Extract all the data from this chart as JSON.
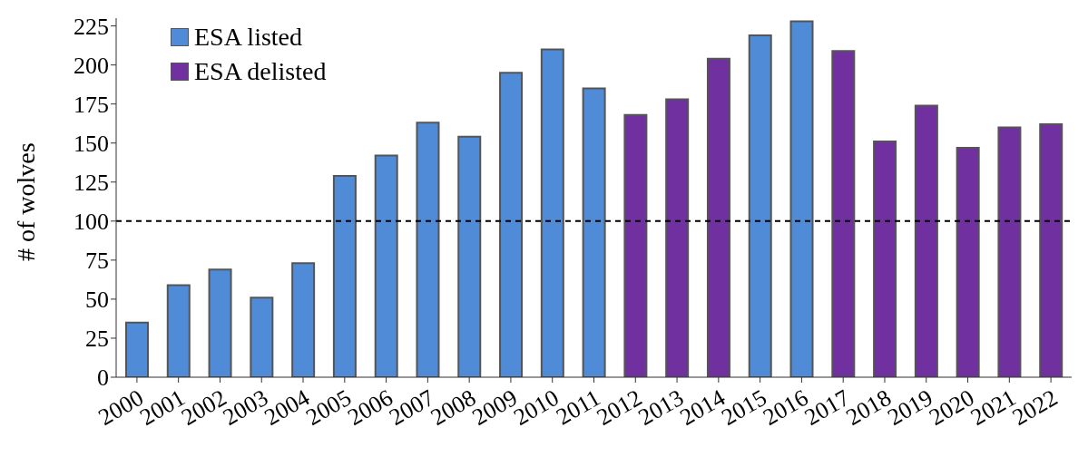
{
  "chart_data": {
    "type": "bar",
    "ylabel": "# of wolves",
    "categories": [
      "2000",
      "2001",
      "2002",
      "2003",
      "2004",
      "2005",
      "2006",
      "2007",
      "2008",
      "2009",
      "2010",
      "2011",
      "2012",
      "2013",
      "2014",
      "2015",
      "2016",
      "2017",
      "2018",
      "2019",
      "2020",
      "2021",
      "2022"
    ],
    "series": [
      {
        "name": "ESA listed",
        "color": "#4f8bd6",
        "values": [
          35,
          59,
          69,
          51,
          73,
          129,
          142,
          163,
          154,
          195,
          210,
          185,
          null,
          null,
          null,
          219,
          228,
          null,
          null,
          null,
          null,
          null,
          null
        ]
      },
      {
        "name": "ESA delisted",
        "color": "#7030a0",
        "values": [
          null,
          null,
          null,
          null,
          null,
          null,
          null,
          null,
          null,
          null,
          null,
          null,
          168,
          178,
          204,
          null,
          null,
          209,
          151,
          174,
          147,
          160,
          162
        ]
      }
    ],
    "ylim": [
      0,
      230
    ],
    "yticks": [
      0,
      25,
      50,
      75,
      100,
      125,
      150,
      175,
      200,
      225
    ],
    "grid": false,
    "legend": "top left",
    "ref_lines": [
      {
        "axis": "y",
        "value": 100,
        "label": null,
        "color": "#000000",
        "line_style": "dashed"
      }
    ]
  }
}
